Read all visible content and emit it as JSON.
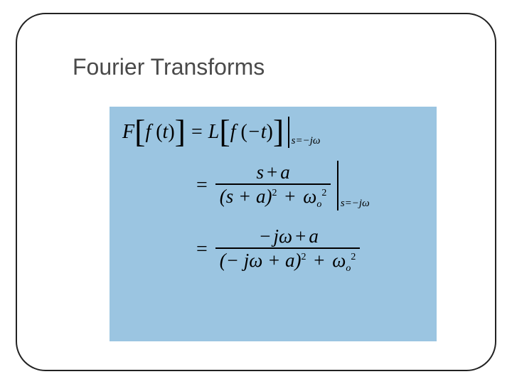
{
  "slide": {
    "title": "Fourier Transforms",
    "panel_bg": "#9bc5e1",
    "line1": {
      "F": "F",
      "f": "f",
      "t": "t",
      "L": "L",
      "neg_t": "−t",
      "eval": "s=−jω"
    },
    "line2": {
      "num": "s + a",
      "den_l": "(s + a)",
      "sq": "2",
      "plus": "+",
      "omega": "ω",
      "o": "o",
      "eval": "s=−jω"
    },
    "line3": {
      "num": "− jω + a",
      "den_l": "(− jω + a)",
      "sq": "2",
      "plus": "+",
      "omega": "ω",
      "o": "o"
    }
  }
}
